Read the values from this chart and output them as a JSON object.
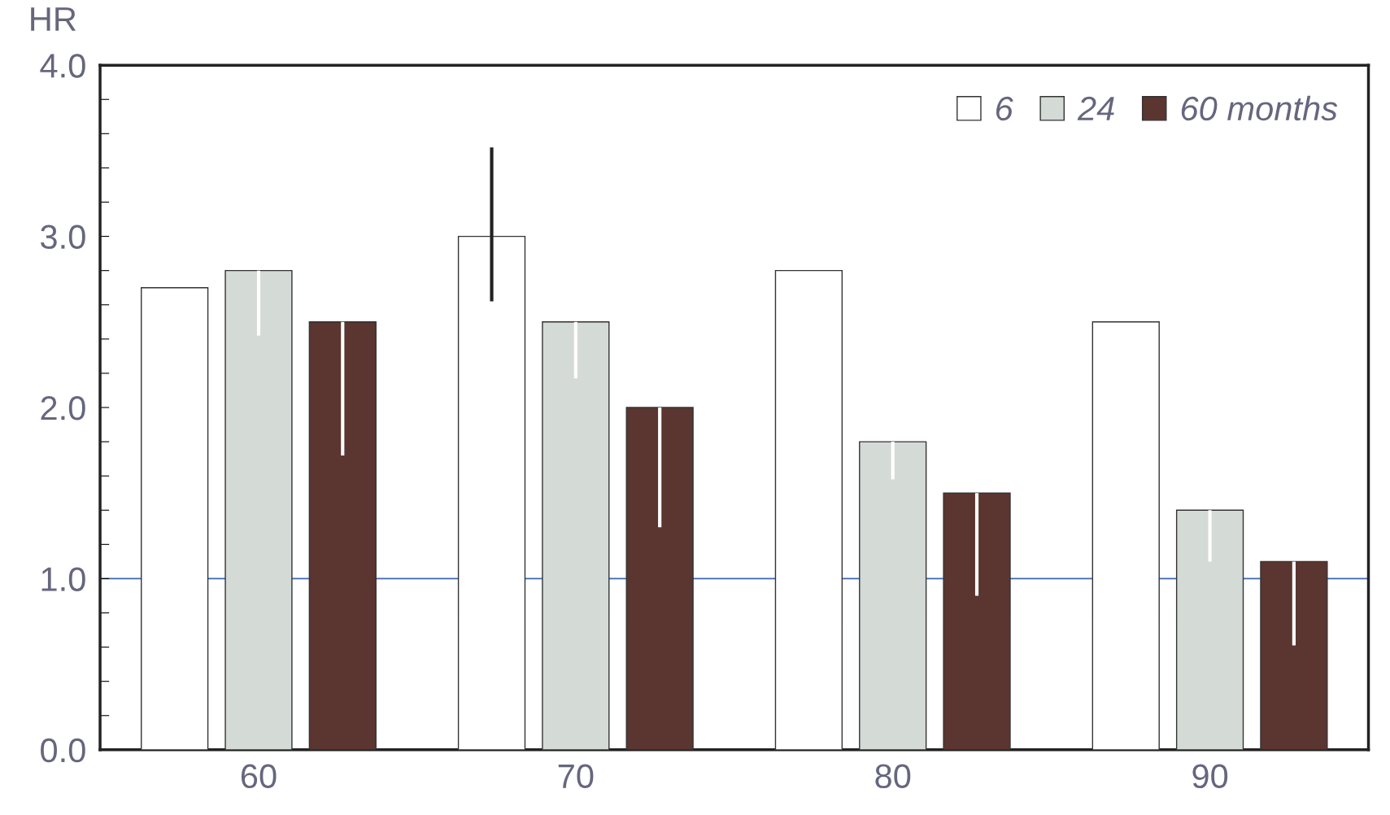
{
  "chart_data": {
    "type": "bar",
    "ylabel": "HR",
    "categories": [
      "60",
      "70",
      "80",
      "90"
    ],
    "series": [
      {
        "name": "6",
        "color": "#ffffff",
        "values": [
          2.7,
          3.0,
          2.8,
          2.5
        ],
        "errors": [
          null,
          [
            2.62,
            3.52
          ],
          null,
          null
        ]
      },
      {
        "name": "24",
        "color": "#d4dad6",
        "values": [
          2.8,
          2.5,
          1.8,
          1.4
        ],
        "errors": [
          [
            2.42,
            2.8
          ],
          [
            2.17,
            2.5
          ],
          [
            1.58,
            1.8
          ],
          [
            1.1,
            1.4
          ]
        ]
      },
      {
        "name": "60 months",
        "color": "#5b3530",
        "values": [
          2.5,
          2.0,
          1.5,
          1.1
        ],
        "errors": [
          [
            1.72,
            2.5
          ],
          [
            1.3,
            2.0
          ],
          [
            0.9,
            1.5
          ],
          [
            0.61,
            1.1
          ]
        ]
      }
    ],
    "ylim": [
      0,
      4
    ],
    "yticks": [
      {
        "value": 0,
        "label": "0.0"
      },
      {
        "value": 0.2,
        "label": null
      },
      {
        "value": 0.4,
        "label": null
      },
      {
        "value": 0.6,
        "label": null
      },
      {
        "value": 0.8,
        "label": null
      },
      {
        "value": 1,
        "label": "1.0"
      },
      {
        "value": 1.2,
        "label": null
      },
      {
        "value": 1.4,
        "label": null
      },
      {
        "value": 1.6,
        "label": null
      },
      {
        "value": 1.8,
        "label": null
      },
      {
        "value": 2,
        "label": "2.0"
      },
      {
        "value": 2.2,
        "label": null
      },
      {
        "value": 2.4,
        "label": null
      },
      {
        "value": 2.6,
        "label": null
      },
      {
        "value": 2.8,
        "label": null
      },
      {
        "value": 3,
        "label": "3.0"
      },
      {
        "value": 3.2,
        "label": null
      },
      {
        "value": 3.4,
        "label": null
      },
      {
        "value": 3.6,
        "label": null
      },
      {
        "value": 3.8,
        "label": null
      },
      {
        "value": 4,
        "label": "4.0"
      }
    ],
    "ref_lines": [
      {
        "axis": "y",
        "value": 1.0,
        "color": "#3a66b0"
      }
    ],
    "legend": "top right",
    "grid": false
  }
}
